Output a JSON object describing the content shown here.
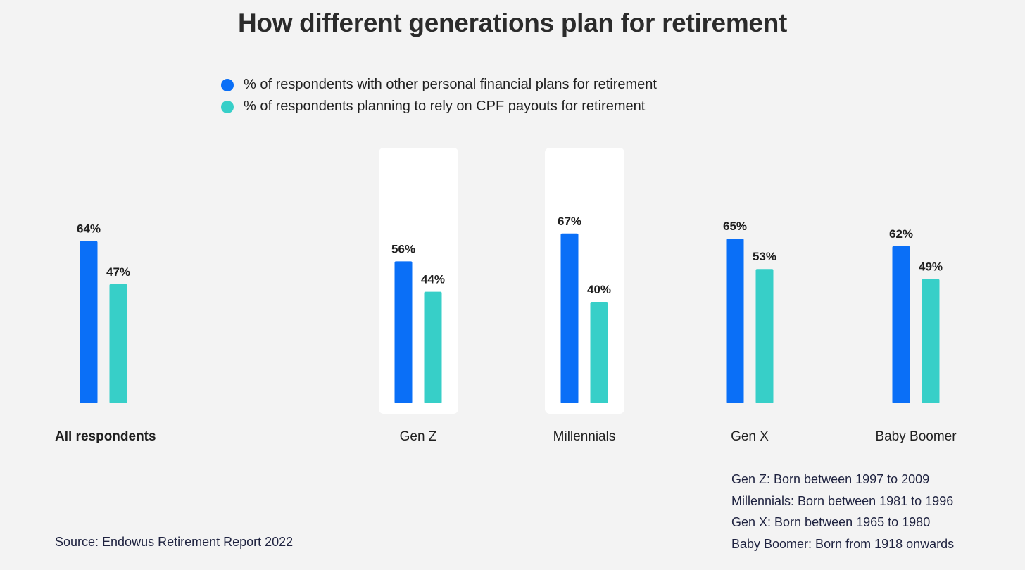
{
  "title": "How different generations plan for retirement",
  "colors": {
    "series1": "#0a6ff7",
    "series2": "#37cfc8",
    "highlight": "#ffffff",
    "background": "#f3f3f3"
  },
  "chart_data": {
    "type": "bar",
    "title": "How different generations plan for retirement",
    "categories": [
      "All respondents",
      "Gen Z",
      "Millennials",
      "Gen X",
      "Baby Boomer"
    ],
    "highlighted_categories": [
      "Gen Z",
      "Millennials"
    ],
    "bold_categories": [
      "All respondents"
    ],
    "series": [
      {
        "name": "% of respondents with other personal financial plans for retirement",
        "values": [
          64,
          56,
          67,
          65,
          62
        ],
        "labels": [
          "64%",
          "56%",
          "67%",
          "65%",
          "62%"
        ]
      },
      {
        "name": "% of respondents planning to rely on CPF payouts for retirement",
        "values": [
          47,
          44,
          40,
          53,
          49
        ],
        "labels": [
          "47%",
          "44%",
          "40%",
          "53%",
          "49%"
        ]
      }
    ],
    "xlabel": "",
    "ylabel": "",
    "ylim": [
      0,
      100
    ],
    "grid": false,
    "legend": "top-center"
  },
  "footnotes": [
    "Gen Z: Born between 1997 to 2009",
    "Millennials: Born between 1981 to 1996",
    "Gen X: Born between 1965 to 1980",
    "Baby Boomer: Born from 1918 onwards"
  ],
  "source": "Source: Endowus Retirement Report 2022"
}
